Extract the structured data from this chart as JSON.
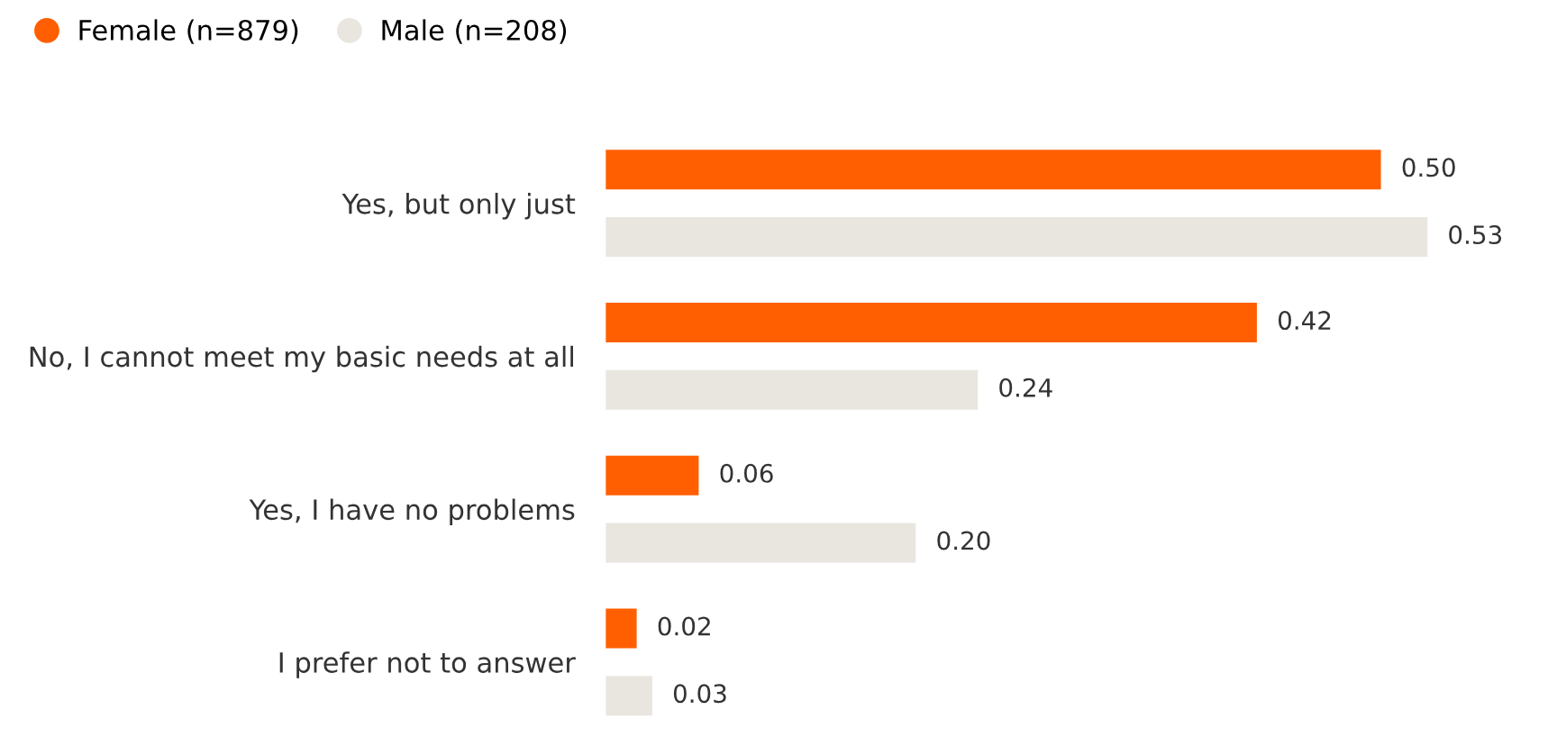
{
  "chart_data": {
    "type": "bar",
    "orientation": "horizontal",
    "categories": [
      "Yes, but only just",
      "No, I cannot meet my basic needs at all",
      "Yes, I have no problems",
      "I prefer not to answer"
    ],
    "series": [
      {
        "name": "Female (n=879)",
        "color": "#ff5f00",
        "values": [
          0.5,
          0.42,
          0.06,
          0.02
        ],
        "value_labels": [
          "0.50",
          "0.42",
          "0.06",
          "0.02"
        ]
      },
      {
        "name": "Male (n=208)",
        "color": "#e8e6df",
        "values": [
          0.53,
          0.24,
          0.2,
          0.03
        ],
        "value_labels": [
          "0.53",
          "0.24",
          "0.20",
          "0.03"
        ]
      }
    ],
    "legend": "top left",
    "tick_labels": "y"
  }
}
